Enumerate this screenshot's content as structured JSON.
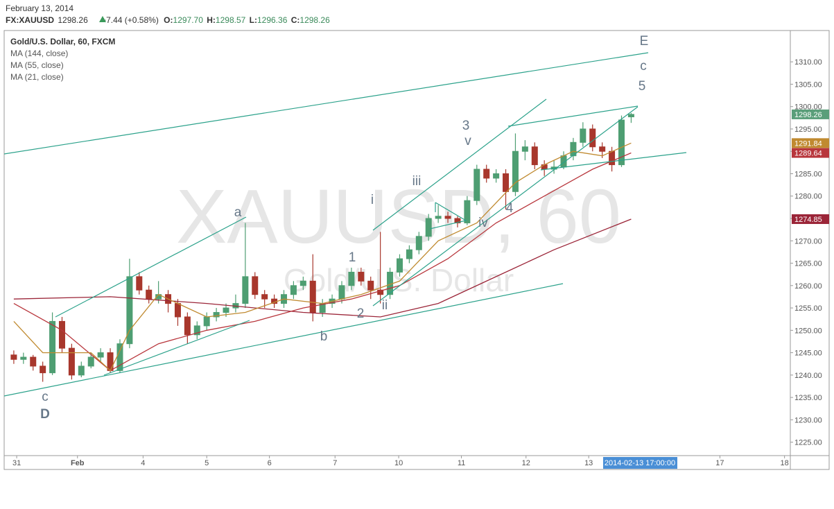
{
  "chart_data": {
    "type": "candlestick",
    "header": {
      "date": "February 13, 2014",
      "symbol": "FX:XAUUSD",
      "last": "1298.26",
      "change": "+7.44 (+0.58%)",
      "ohlc_labels": [
        "O:",
        "H:",
        "L:",
        "C:"
      ],
      "ohlc_values": [
        "1297.70",
        "1298.57",
        "1296.36",
        "1298.26"
      ]
    },
    "title": "Gold/U.S. Dollar, 60, FXCM",
    "watermark": [
      "XAUUSD, 60",
      "Gold/U.S. Dollar"
    ],
    "time_label": "2014-02-13 17:00:00",
    "up_color": "#4e9e72",
    "down_color": "#a8372c",
    "ylim": [
      1222,
      1317
    ],
    "yticks": [
      {
        "value": 1225,
        "label": "1225.00"
      },
      {
        "value": 1230,
        "label": "1230.00"
      },
      {
        "value": 1235,
        "label": "1235.00"
      },
      {
        "value": 1240,
        "label": "1240.00"
      },
      {
        "value": 1245,
        "label": "1245.00"
      },
      {
        "value": 1250,
        "label": "1250.00"
      },
      {
        "value": 1255,
        "label": "1255.00"
      },
      {
        "value": 1260,
        "label": "1260.00"
      },
      {
        "value": 1265,
        "label": "1265.00"
      },
      {
        "value": 1270,
        "label": "1270.00"
      },
      {
        "value": 1275,
        "label": "1275.00"
      },
      {
        "value": 1280,
        "label": "1280.00"
      },
      {
        "value": 1285,
        "label": "1285.00"
      },
      {
        "value": 1290,
        "label": "1290.00"
      },
      {
        "value": 1295,
        "label": "1295.00"
      },
      {
        "value": 1300,
        "label": "1300.00"
      },
      {
        "value": 1305,
        "label": "1305.00"
      },
      {
        "value": 1310,
        "label": "1310.00"
      }
    ],
    "xlim": [
      -1,
      80.5
    ],
    "xticks": [
      {
        "value": 0.3,
        "label": "31"
      },
      {
        "value": 6.6,
        "label": "Feb"
      },
      {
        "value": 13.4,
        "label": "4"
      },
      {
        "value": 20,
        "label": "5"
      },
      {
        "value": 26.5,
        "label": "6"
      },
      {
        "value": 33.3,
        "label": "7"
      },
      {
        "value": 39.9,
        "label": "10"
      },
      {
        "value": 46.4,
        "label": "11"
      },
      {
        "value": 53.1,
        "label": "12"
      },
      {
        "value": 59.6,
        "label": "13"
      },
      {
        "value": 73.2,
        "label": "17"
      },
      {
        "value": 79.9,
        "label": "18"
      }
    ],
    "candles": [
      [
        1244.5,
        1245.5,
        1242.5,
        1243.5
      ],
      [
        1243.5,
        1245,
        1242.5,
        1244
      ],
      [
        1244,
        1244.5,
        1241,
        1242
      ],
      [
        1242,
        1243,
        1238.5,
        1240.5
      ],
      [
        1240.5,
        1254,
        1240,
        1252
      ],
      [
        1252,
        1253,
        1245,
        1246
      ],
      [
        1246,
        1247,
        1239,
        1240
      ],
      [
        1240,
        1243,
        1239.5,
        1242
      ],
      [
        1242,
        1245,
        1241.5,
        1244
      ],
      [
        1244,
        1246,
        1243,
        1245
      ],
      [
        1245,
        1246,
        1240.5,
        1241
      ],
      [
        1241,
        1248,
        1240.5,
        1247
      ],
      [
        1247,
        1266,
        1246,
        1262
      ],
      [
        1262,
        1263,
        1258,
        1259
      ],
      [
        1259,
        1260,
        1256,
        1257
      ],
      [
        1257,
        1261,
        1256,
        1258
      ],
      [
        1258,
        1259,
        1254,
        1256
      ],
      [
        1256,
        1257,
        1251,
        1253
      ],
      [
        1253,
        1254,
        1247,
        1249
      ],
      [
        1249,
        1252,
        1248,
        1251
      ],
      [
        1251,
        1254,
        1250,
        1253
      ],
      [
        1253,
        1255,
        1252,
        1254
      ],
      [
        1254,
        1256,
        1253,
        1255
      ],
      [
        1255,
        1258,
        1254,
        1256
      ],
      [
        1256,
        1274,
        1255,
        1262
      ],
      [
        1262,
        1263,
        1257,
        1258
      ],
      [
        1258,
        1259,
        1255,
        1257
      ],
      [
        1257,
        1258,
        1255,
        1256
      ],
      [
        1256,
        1259,
        1255,
        1258
      ],
      [
        1258,
        1261,
        1257,
        1260
      ],
      [
        1260,
        1262,
        1259,
        1261
      ],
      [
        1261,
        1267,
        1252,
        1254
      ],
      [
        1254,
        1257,
        1253,
        1256
      ],
      [
        1256,
        1258,
        1255,
        1257
      ],
      [
        1257,
        1261,
        1256,
        1260
      ],
      [
        1260,
        1264,
        1259,
        1263
      ],
      [
        1263,
        1264,
        1260,
        1261
      ],
      [
        1261,
        1262,
        1257,
        1259
      ],
      [
        1259,
        1272,
        1256,
        1258
      ],
      [
        1258,
        1264,
        1257,
        1263
      ],
      [
        1263,
        1267,
        1262,
        1266
      ],
      [
        1266,
        1269,
        1265,
        1268
      ],
      [
        1268,
        1272,
        1267,
        1271
      ],
      [
        1271,
        1276,
        1270,
        1275
      ],
      [
        1275,
        1278,
        1274,
        1275.5
      ],
      [
        1275.5,
        1276.5,
        1274,
        1275
      ],
      [
        1275,
        1275.5,
        1273,
        1274
      ],
      [
        1274,
        1280,
        1273.5,
        1279
      ],
      [
        1279,
        1287,
        1278,
        1286
      ],
      [
        1286,
        1287,
        1283,
        1284
      ],
      [
        1284,
        1286,
        1283,
        1285
      ],
      [
        1285,
        1286,
        1277,
        1281
      ],
      [
        1281,
        1294,
        1280,
        1290
      ],
      [
        1290,
        1292.5,
        1288,
        1291
      ],
      [
        1291,
        1292,
        1286,
        1287
      ],
      [
        1287,
        1288,
        1284.5,
        1286
      ],
      [
        1286,
        1288,
        1285,
        1286.5
      ],
      [
        1286.5,
        1290,
        1286,
        1289
      ],
      [
        1289,
        1293,
        1288,
        1292
      ],
      [
        1292,
        1296.5,
        1291,
        1295
      ],
      [
        1295,
        1296,
        1290,
        1291
      ],
      [
        1291,
        1292,
        1288.5,
        1290
      ],
      [
        1290,
        1291,
        1285.5,
        1287
      ],
      [
        1287,
        1298,
        1286.5,
        1297
      ],
      [
        1297.7,
        1298.57,
        1296.36,
        1298.26
      ]
    ],
    "series": [
      {
        "name": "MA (144, close)",
        "color": "#9b2538",
        "x": [
          0,
          10,
          20,
          30,
          38,
          44,
          50,
          56,
          64
        ],
        "values": [
          1257,
          1257.5,
          1256,
          1254,
          1253,
          1256,
          1262,
          1268,
          1274.85
        ]
      },
      {
        "name": "MA (55, close)",
        "color": "#b8363c",
        "x": [
          0,
          5,
          10,
          15,
          20,
          25,
          30,
          35,
          40,
          45,
          50,
          55,
          60,
          64
        ],
        "values": [
          1256,
          1250,
          1241,
          1247,
          1250,
          1252,
          1255,
          1257,
          1260,
          1266,
          1274,
          1280,
          1286,
          1289.64
        ]
      },
      {
        "name": "MA (21, close)",
        "color": "#c08a30",
        "x": [
          0,
          3,
          8,
          10,
          12,
          15,
          20,
          24,
          28,
          32,
          36,
          40,
          44,
          48,
          52,
          55,
          58,
          61,
          64
        ],
        "values": [
          1252,
          1245,
          1245,
          1241,
          1250,
          1258,
          1253,
          1254,
          1257,
          1256,
          1258,
          1261,
          1270,
          1274,
          1283,
          1287,
          1290,
          1289,
          1291.84
        ]
      }
    ],
    "annotations": [
      "a",
      "b",
      "c",
      "D",
      "E",
      "c",
      "5",
      "1",
      "2",
      "3",
      "4",
      "i",
      "ii",
      "iii",
      "iv",
      "v"
    ]
  }
}
